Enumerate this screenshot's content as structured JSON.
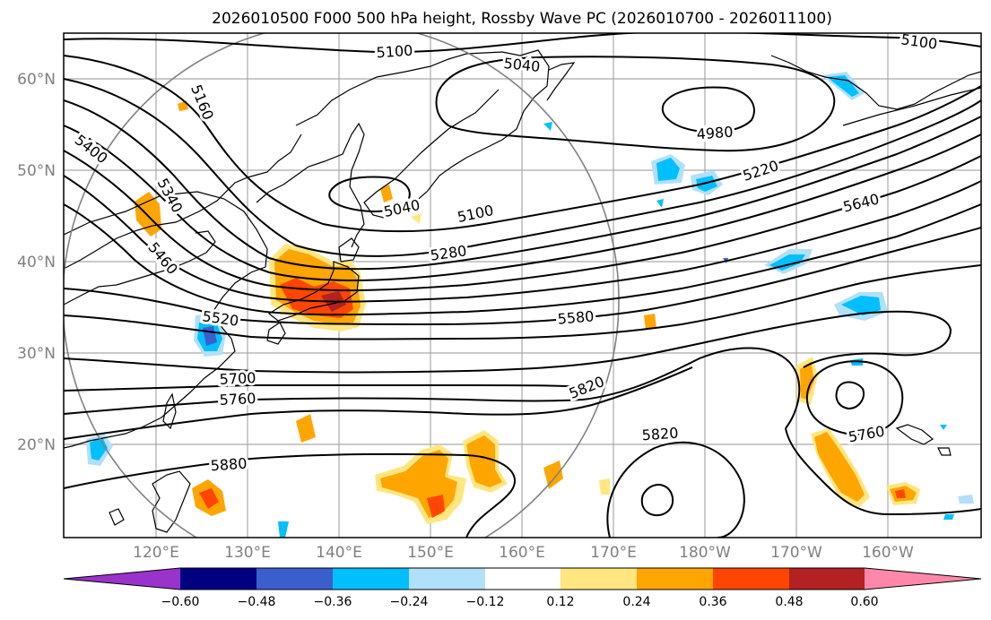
{
  "title": "2026010500 F000 500 hPa height, Rossby Wave PC (2026010700 - 2026011100)",
  "map": {
    "lon_ticks": [
      "120°E",
      "130°E",
      "140°E",
      "150°E",
      "160°E",
      "170°E",
      "180°W",
      "170°W",
      "160°W"
    ],
    "lat_ticks": [
      "60°N",
      "50°N",
      "40°N",
      "30°N",
      "20°N"
    ],
    "gridlines": true,
    "contour_color": "#000000",
    "circle_color": "#808080",
    "contour_labels": [
      "5100",
      "5040",
      "5100",
      "5160",
      "5400",
      "5340",
      "4980",
      "5220",
      "5040",
      "5100",
      "5460",
      "5280",
      "5640",
      "5520",
      "5580",
      "5700",
      "5760",
      "5820",
      "5820",
      "5760",
      "5880"
    ]
  },
  "colorbar": {
    "ticks": [
      "−0.60",
      "−0.48",
      "−0.36",
      "−0.24",
      "−0.12",
      "0.12",
      "0.24",
      "0.36",
      "0.48",
      "0.60"
    ],
    "colors": [
      "#9933cc",
      "#000080",
      "#3a5fcd",
      "#00bfff",
      "#b0e0fa",
      "#ffffff",
      "#ffe680",
      "#ffa500",
      "#ff4500",
      "#b22222",
      "#ff88aa"
    ]
  }
}
